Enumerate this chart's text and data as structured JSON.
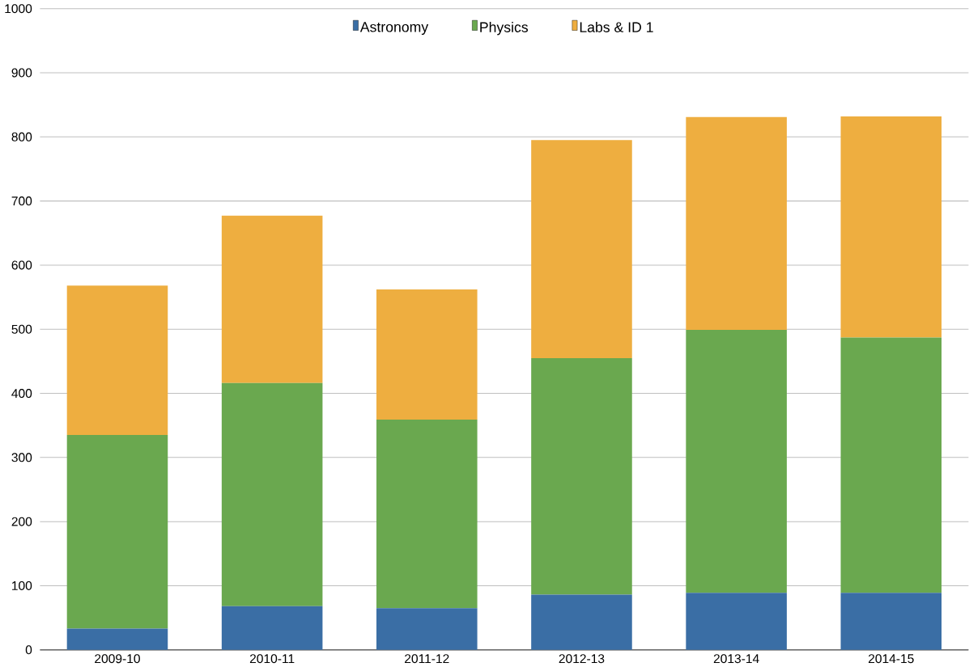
{
  "chart_data": {
    "type": "bar",
    "stacked": true,
    "categories": [
      "2009-10",
      "2010-11",
      "2011-12",
      "2012-13",
      "2013-14",
      "2014-15"
    ],
    "series": [
      {
        "name": "Astronomy",
        "color": "#3a6ea5",
        "values": [
          33,
          68,
          65,
          86,
          89,
          89
        ]
      },
      {
        "name": "Physics",
        "color": "#6aa84f",
        "values": [
          302,
          348,
          294,
          369,
          410,
          398
        ]
      },
      {
        "name": "Labs & ID 1",
        "color": "#eeae40",
        "values": [
          233,
          261,
          203,
          340,
          332,
          345
        ]
      }
    ],
    "ylim": [
      0,
      1000
    ],
    "yticks": [
      0,
      100,
      200,
      300,
      400,
      500,
      600,
      700,
      800,
      900,
      1000
    ],
    "grid": "y",
    "legend": "top"
  }
}
